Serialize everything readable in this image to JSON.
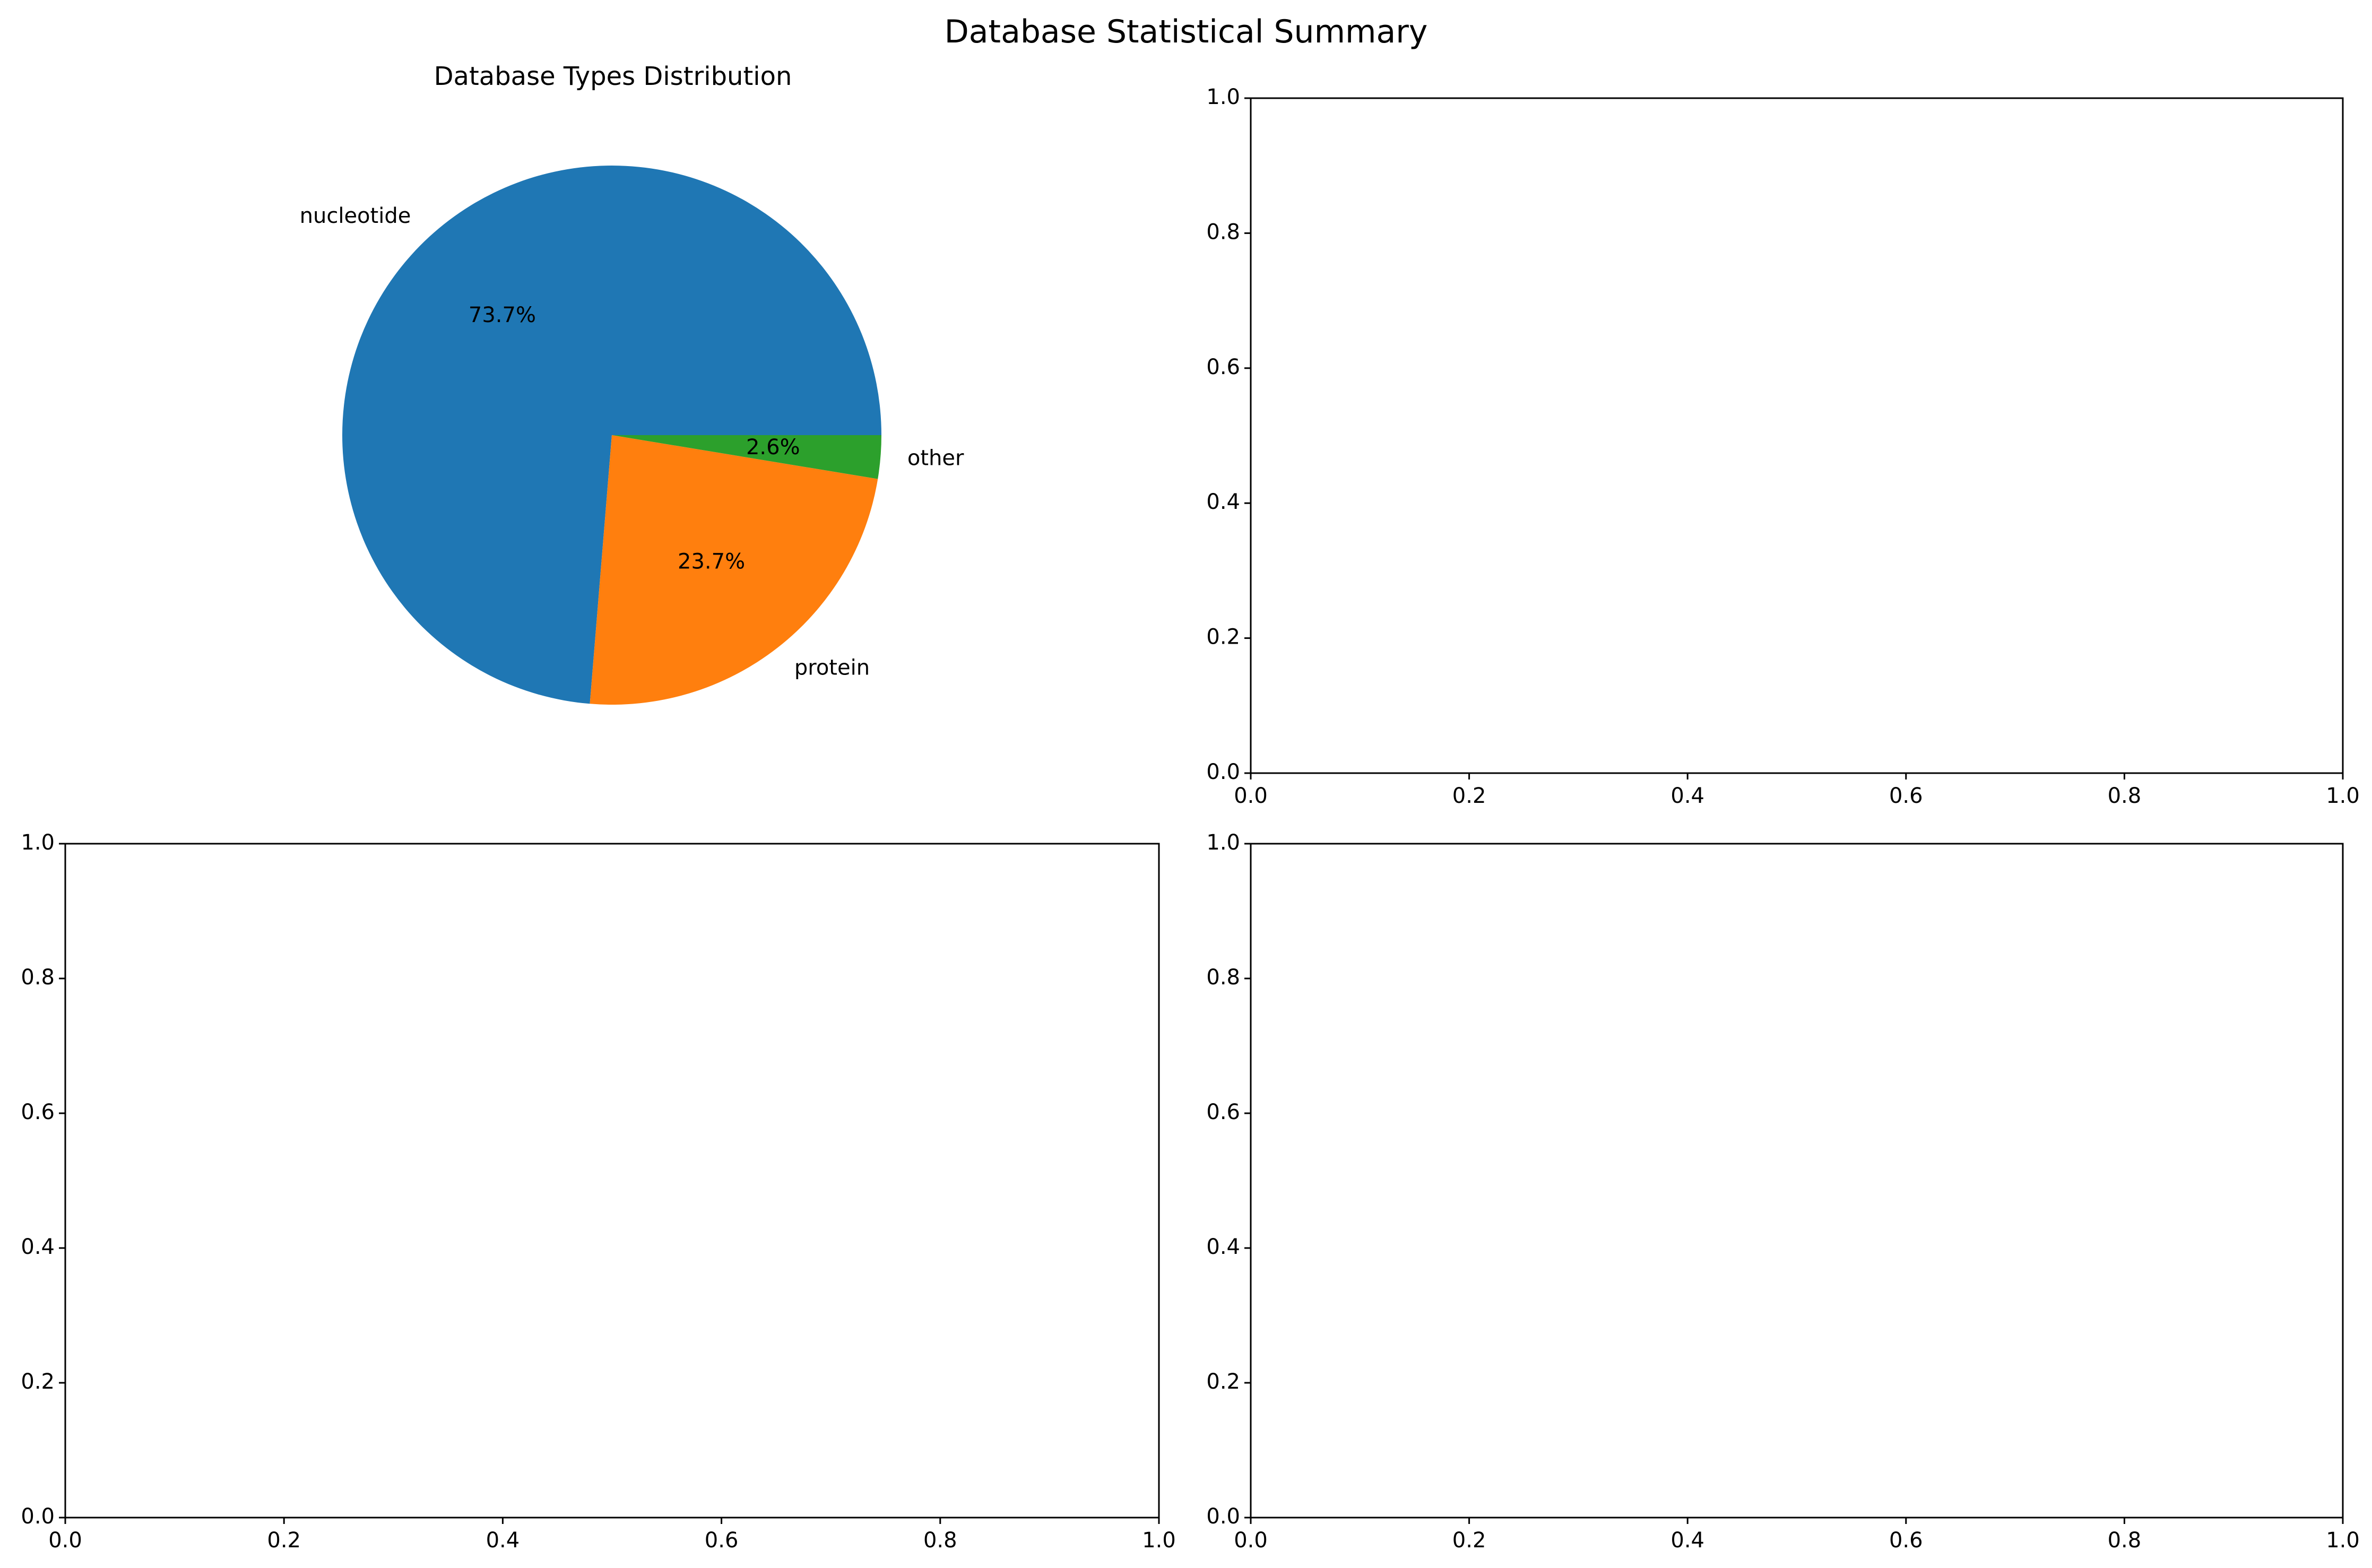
{
  "figure": {
    "title": "Database Statistical Summary"
  },
  "chart_data": [
    {
      "type": "pie",
      "title": "Database Types Distribution",
      "labels": [
        "nucleotide",
        "protein",
        "other"
      ],
      "values": [
        73.7,
        23.7,
        2.6
      ],
      "autopct": [
        "73.7%",
        "23.7%",
        "2.6%"
      ],
      "colors": [
        "#1f77b4",
        "#ff7f0e",
        "#2ca02c"
      ],
      "start_angle_deg": 0,
      "direction": "counterclockwise"
    },
    {
      "type": "line",
      "title": "",
      "series": [],
      "xlim": [
        0,
        1
      ],
      "ylim": [
        0,
        1
      ],
      "xticks": [
        "0.0",
        "0.2",
        "0.4",
        "0.6",
        "0.8",
        "1.0"
      ],
      "yticks": [
        "0.0",
        "0.2",
        "0.4",
        "0.6",
        "0.8",
        "1.0"
      ]
    },
    {
      "type": "line",
      "title": "",
      "series": [],
      "xlim": [
        0,
        1
      ],
      "ylim": [
        0,
        1
      ],
      "xticks": [
        "0.0",
        "0.2",
        "0.4",
        "0.6",
        "0.8",
        "1.0"
      ],
      "yticks": [
        "0.0",
        "0.2",
        "0.4",
        "0.6",
        "0.8",
        "1.0"
      ]
    },
    {
      "type": "line",
      "title": "",
      "series": [],
      "xlim": [
        0,
        1
      ],
      "ylim": [
        0,
        1
      ],
      "xticks": [
        "0.0",
        "0.2",
        "0.4",
        "0.6",
        "0.8",
        "1.0"
      ],
      "yticks": [
        "0.0",
        "0.2",
        "0.4",
        "0.6",
        "0.8",
        "1.0"
      ]
    }
  ]
}
